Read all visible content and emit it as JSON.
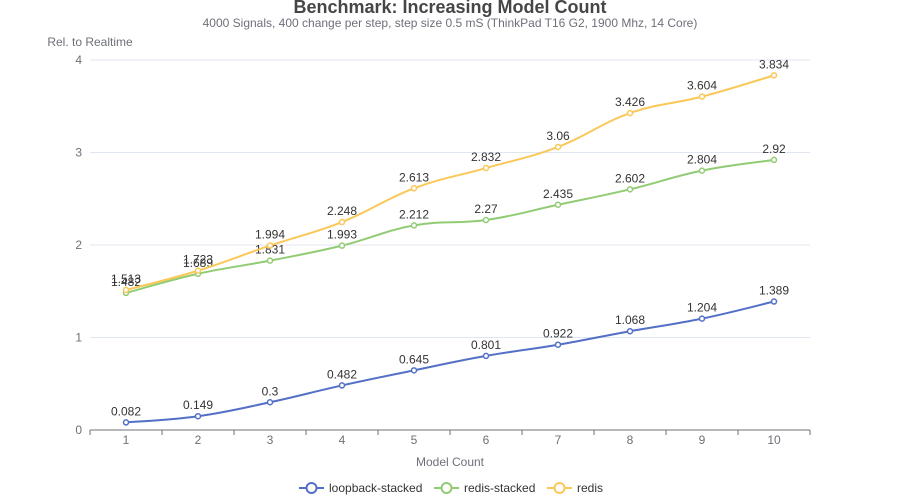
{
  "chart_data": {
    "type": "line",
    "title": "Benchmark: Increasing Model Count",
    "subtitle": "4000 Signals, 400 change per step, step size 0.5 mS (ThinkPad T16 G2, 1900 Mhz, 14 Core)",
    "xlabel": "Model Count",
    "ylabel": "Rel. to Realtime",
    "categories": [
      "1",
      "2",
      "3",
      "4",
      "5",
      "6",
      "7",
      "8",
      "9",
      "10"
    ],
    "ylim": [
      0,
      4
    ],
    "yticks": [
      "0",
      "1",
      "2",
      "3",
      "4"
    ],
    "grid": true,
    "legend_position": "bottom",
    "series": [
      {
        "name": "loopback-stacked",
        "color": "#5470c6",
        "values": [
          0.082,
          0.149,
          0.3,
          0.482,
          0.645,
          0.801,
          0.922,
          1.068,
          1.204,
          1.389
        ]
      },
      {
        "name": "redis-stacked",
        "color": "#91cc75",
        "values": [
          1.482,
          1.689,
          1.831,
          1.993,
          2.212,
          2.27,
          2.435,
          2.602,
          2.804,
          2.92
        ]
      },
      {
        "name": "redis",
        "color": "#fac858",
        "values": [
          1.513,
          1.723,
          1.994,
          2.248,
          2.613,
          2.832,
          3.06,
          3.426,
          3.604,
          3.834
        ]
      }
    ],
    "label_texts": [
      [
        "0.082",
        "0.149",
        "0.3",
        "0.482",
        "0.645",
        "0.801",
        "0.922",
        "1.068",
        "1.204",
        "1.389"
      ],
      [
        "1.482",
        "1.689",
        "1.831",
        "1.993",
        "2.212",
        "2.27",
        "2.435",
        "2.602",
        "2.804",
        "2.92"
      ],
      [
        "1.513",
        "1.723",
        "1.994",
        "2.248",
        "2.613",
        "2.832",
        "3.06",
        "3.426",
        "3.604",
        "3.834"
      ]
    ]
  }
}
